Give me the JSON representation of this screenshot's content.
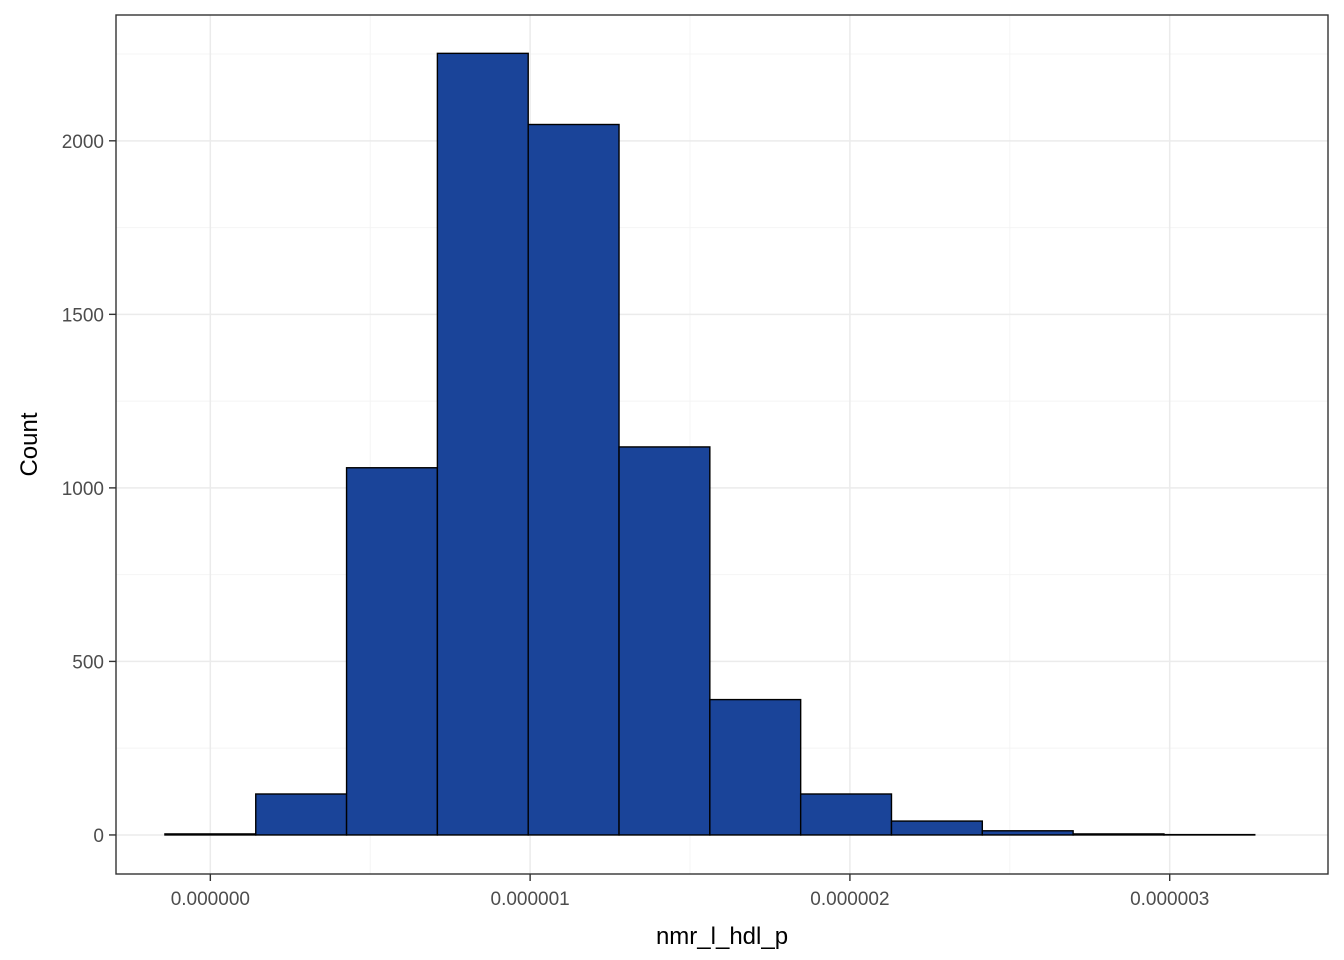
{
  "chart_data": {
    "type": "bar",
    "title": "",
    "xlabel": "nmr_l_hdl_p",
    "ylabel": "Count",
    "xlim": [
      -2.95e-07,
      3.495e-06
    ],
    "ylim": [
      -112.5,
      2362.5
    ],
    "x_ticks": [
      {
        "value": 0.0,
        "label": "0.000000"
      },
      {
        "value": 1e-06,
        "label": "0.000001"
      },
      {
        "value": 2e-06,
        "label": "0.000002"
      },
      {
        "value": 3e-06,
        "label": "0.000003"
      }
    ],
    "y_ticks": [
      {
        "value": 0,
        "label": "0"
      },
      {
        "value": 500,
        "label": "500"
      },
      {
        "value": 1000,
        "label": "1000"
      },
      {
        "value": 1500,
        "label": "1500"
      },
      {
        "value": 2000,
        "label": "2000"
      }
    ],
    "x_minor_ticks": [
      5e-07,
      1.5e-06,
      2.5e-06
    ],
    "y_minor_ticks": [
      250,
      750,
      1250,
      1750,
      2250
    ],
    "grid": true,
    "bins": [
      {
        "start": -1.42e-07,
        "end": 1.42e-07,
        "count": 3
      },
      {
        "start": 1.42e-07,
        "end": 4.26e-07,
        "count": 118
      },
      {
        "start": 4.26e-07,
        "end": 7.1e-07,
        "count": 1058
      },
      {
        "start": 7.1e-07,
        "end": 9.94e-07,
        "count": 2252
      },
      {
        "start": 9.94e-07,
        "end": 1.278e-06,
        "count": 2047
      },
      {
        "start": 1.278e-06,
        "end": 1.562e-06,
        "count": 1118
      },
      {
        "start": 1.562e-06,
        "end": 1.846e-06,
        "count": 390
      },
      {
        "start": 1.846e-06,
        "end": 2.13e-06,
        "count": 118
      },
      {
        "start": 2.13e-06,
        "end": 2.414e-06,
        "count": 40
      },
      {
        "start": 2.414e-06,
        "end": 2.698e-06,
        "count": 12
      },
      {
        "start": 2.698e-06,
        "end": 2.982e-06,
        "count": 3
      },
      {
        "start": 2.982e-06,
        "end": 3.266e-06,
        "count": 1
      }
    ],
    "colors": {
      "bar_fill": "#1a4499",
      "bar_stroke": "#000000",
      "grid_major": "#ebebeb",
      "grid_minor": "#f4f4f4",
      "panel_border": "#333333",
      "tick_color": "#333333"
    }
  }
}
